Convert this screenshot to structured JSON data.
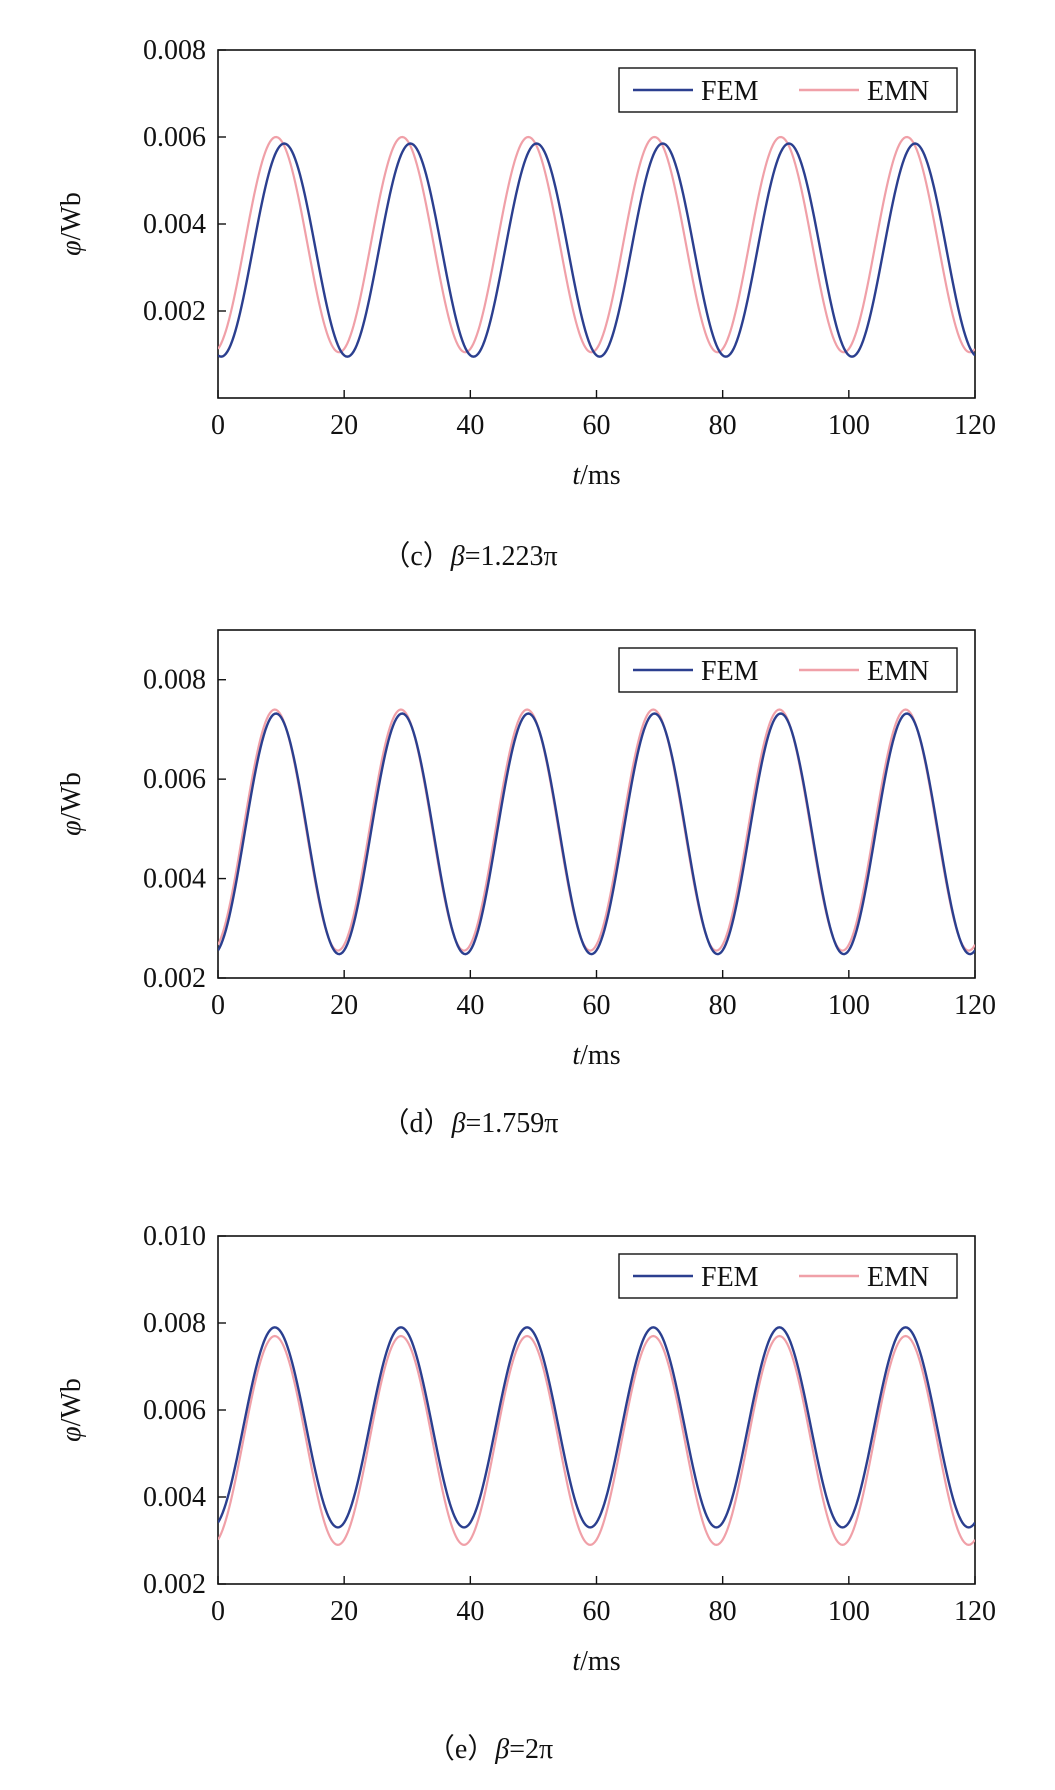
{
  "colors": {
    "fem": "#2b3f8f",
    "emn": "#f0a0a8",
    "axis": "#111111"
  },
  "chart_data": [
    {
      "type": "line",
      "caption": {
        "prefix": "（c）",
        "symbol": "β",
        "value": "=1.223π"
      },
      "xlabel": {
        "var": "t",
        "unit": "/ms"
      },
      "ylabel": {
        "var": "φ",
        "unit": "/Wb"
      },
      "xlim": [
        0,
        120
      ],
      "ylim": [
        0,
        0.008
      ],
      "xticks": [
        0,
        20,
        40,
        60,
        80,
        100,
        120
      ],
      "xtick_labels": [
        "0",
        "20",
        "40",
        "60",
        "80",
        "100",
        "120"
      ],
      "yticks": [
        0.002,
        0.004,
        0.006,
        0.008
      ],
      "ytick_labels": [
        "0.002",
        "0.004",
        "0.006",
        "0.008"
      ],
      "legend": "top-right",
      "series": [
        {
          "name": "FEM",
          "period_ms": 20,
          "peak_t_ms": 10.5,
          "min": 0.00095,
          "max": 0.00585
        },
        {
          "name": "EMN",
          "period_ms": 20,
          "peak_t_ms": 9.2,
          "min": 0.00105,
          "max": 0.006
        }
      ]
    },
    {
      "type": "line",
      "caption": {
        "prefix": "（d）",
        "symbol": "β",
        "value": "=1.759π"
      },
      "xlabel": {
        "var": "t",
        "unit": "/ms"
      },
      "ylabel": {
        "var": "φ",
        "unit": "/Wb"
      },
      "xlim": [
        0,
        120
      ],
      "ylim": [
        0.002,
        0.009
      ],
      "xticks": [
        0,
        20,
        40,
        60,
        80,
        100,
        120
      ],
      "xtick_labels": [
        "0",
        "20",
        "40",
        "60",
        "80",
        "100",
        "120"
      ],
      "yticks": [
        0.002,
        0.004,
        0.006,
        0.008
      ],
      "ytick_labels": [
        "0.002",
        "0.004",
        "0.006",
        "0.008"
      ],
      "legend": "top-right",
      "series": [
        {
          "name": "FEM",
          "period_ms": 20,
          "peak_t_ms": 9.2,
          "min": 0.00248,
          "max": 0.00732
        },
        {
          "name": "EMN",
          "period_ms": 20,
          "peak_t_ms": 9.0,
          "min": 0.00255,
          "max": 0.0074
        }
      ]
    },
    {
      "type": "line",
      "caption": {
        "prefix": "（e）",
        "symbol": "β",
        "value": "=2π"
      },
      "xlabel": {
        "var": "t",
        "unit": "/ms"
      },
      "ylabel": {
        "var": "φ",
        "unit": "/Wb"
      },
      "xlim": [
        0,
        120
      ],
      "ylim": [
        0.002,
        0.01
      ],
      "xticks": [
        0,
        20,
        40,
        60,
        80,
        100,
        120
      ],
      "xtick_labels": [
        "0",
        "20",
        "40",
        "60",
        "80",
        "100",
        "120"
      ],
      "yticks": [
        0.002,
        0.004,
        0.006,
        0.008,
        0.01
      ],
      "ytick_labels": [
        "0.002",
        "0.004",
        "0.006",
        "0.008",
        "0.010"
      ],
      "legend": "top-right",
      "series": [
        {
          "name": "FEM",
          "period_ms": 20,
          "peak_t_ms": 9.0,
          "min": 0.0033,
          "max": 0.0079
        },
        {
          "name": "EMN",
          "period_ms": 20,
          "peak_t_ms": 9.0,
          "min": 0.0029,
          "max": 0.0077
        }
      ]
    }
  ]
}
